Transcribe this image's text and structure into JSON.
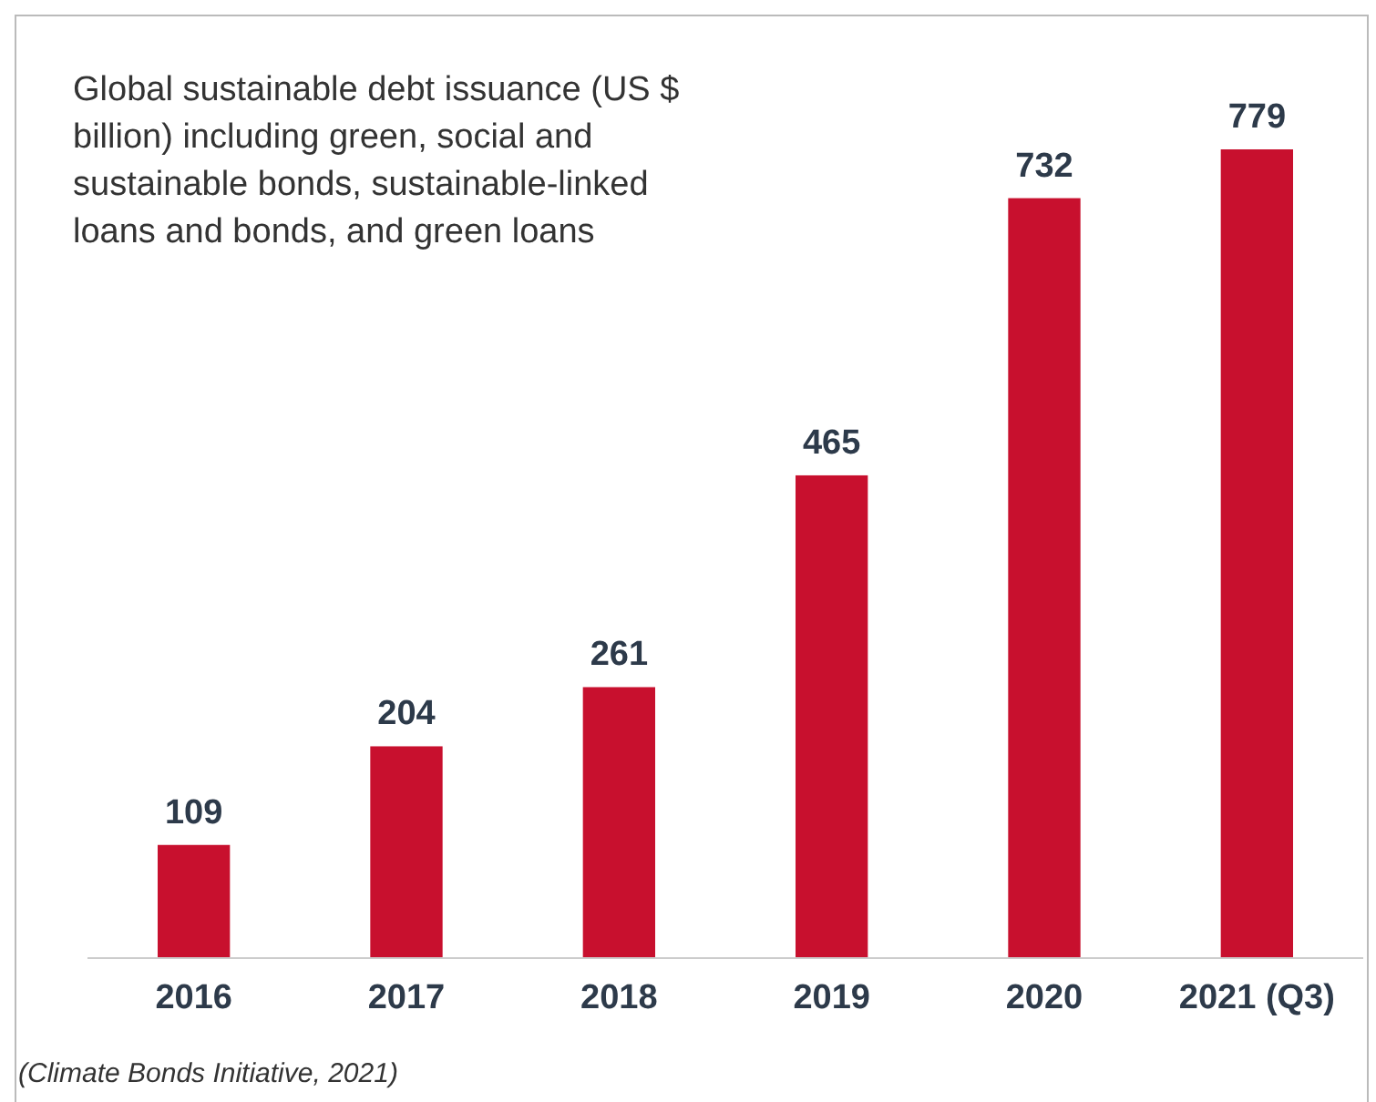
{
  "chart_data": {
    "type": "bar",
    "title": "Global sustainable debt issuance (US $ billion) including green, social and sustainable bonds, sustainable-linked loans and bonds, and green loans",
    "categories": [
      "2016",
      "2017",
      "2018",
      "2019",
      "2020",
      "2021 (Q3)"
    ],
    "values": [
      109,
      204,
      261,
      465,
      732,
      779
    ],
    "color": "#c8102e",
    "data_labels": true,
    "annotations": [
      "(Climate Bonds Initiative, 2021)"
    ]
  }
}
